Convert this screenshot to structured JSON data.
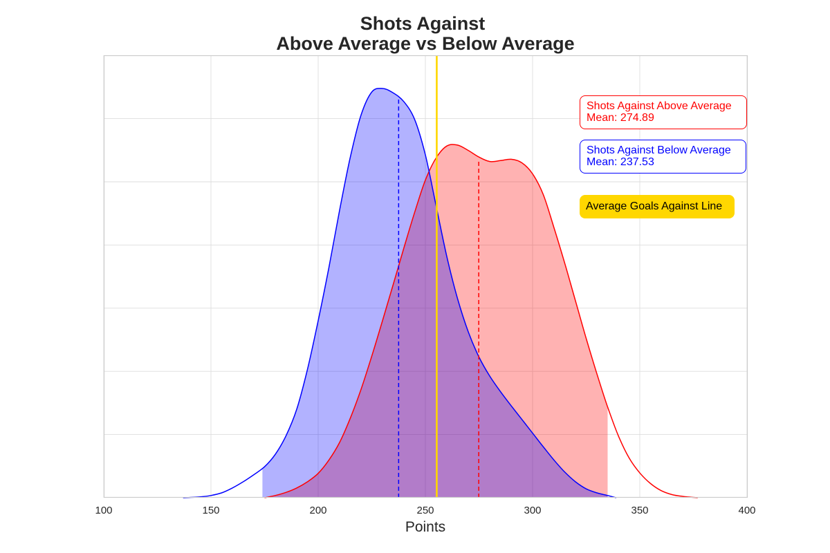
{
  "chart_data": {
    "type": "area",
    "title_lines": [
      "Shots Against",
      "Above Average vs Below Average"
    ],
    "xlabel": "Points",
    "ylabel": "",
    "xlim": [
      100,
      400
    ],
    "xticks": [
      100,
      150,
      200,
      250,
      300,
      350,
      400
    ],
    "ylim": [
      0,
      1.0
    ],
    "grid": true,
    "vertical_line": {
      "x": 255.3,
      "color": "#ffd700",
      "label": "Average Goals Against Line"
    },
    "series": [
      {
        "name": "Shots Against Above Average",
        "color": "#ff0000",
        "fill": "#ffb1b1",
        "mean": 274.89,
        "legend_text": [
          "Shots Against Above Average",
          "Mean: 274.89"
        ],
        "fill_range": [
          175,
          335
        ],
        "points": [
          [
            175,
            0.0
          ],
          [
            180,
            0.005
          ],
          [
            185,
            0.012
          ],
          [
            190,
            0.022
          ],
          [
            195,
            0.036
          ],
          [
            200,
            0.055
          ],
          [
            205,
            0.085
          ],
          [
            210,
            0.125
          ],
          [
            215,
            0.18
          ],
          [
            220,
            0.245
          ],
          [
            225,
            0.32
          ],
          [
            230,
            0.4
          ],
          [
            235,
            0.482
          ],
          [
            240,
            0.565
          ],
          [
            245,
            0.645
          ],
          [
            250,
            0.718
          ],
          [
            255,
            0.768
          ],
          [
            260,
            0.795
          ],
          [
            265,
            0.797
          ],
          [
            270,
            0.785
          ],
          [
            275,
            0.77
          ],
          [
            280,
            0.76
          ],
          [
            285,
            0.762
          ],
          [
            290,
            0.765
          ],
          [
            295,
            0.757
          ],
          [
            300,
            0.732
          ],
          [
            305,
            0.685
          ],
          [
            310,
            0.61
          ],
          [
            315,
            0.53
          ],
          [
            320,
            0.445
          ],
          [
            325,
            0.36
          ],
          [
            330,
            0.28
          ],
          [
            335,
            0.205
          ],
          [
            340,
            0.14
          ],
          [
            345,
            0.09
          ],
          [
            350,
            0.056
          ],
          [
            355,
            0.032
          ],
          [
            360,
            0.016
          ],
          [
            365,
            0.007
          ],
          [
            370,
            0.003
          ],
          [
            377,
            0.0
          ]
        ],
        "mean_density": 0.765
      },
      {
        "name": "Shots Against Below Average",
        "color": "#0000ff",
        "fill": "#b1b1ff",
        "mean": 237.53,
        "legend_text": [
          "Shots Against Below Average",
          "Mean: 237.53"
        ],
        "fill_range": [
          174,
          335
        ],
        "points": [
          [
            137,
            0.0
          ],
          [
            145,
            0.002
          ],
          [
            150,
            0.005
          ],
          [
            155,
            0.011
          ],
          [
            160,
            0.022
          ],
          [
            165,
            0.036
          ],
          [
            170,
            0.052
          ],
          [
            175,
            0.07
          ],
          [
            180,
            0.098
          ],
          [
            185,
            0.14
          ],
          [
            190,
            0.2
          ],
          [
            195,
            0.29
          ],
          [
            200,
            0.4
          ],
          [
            205,
            0.52
          ],
          [
            210,
            0.65
          ],
          [
            215,
            0.77
          ],
          [
            220,
            0.865
          ],
          [
            225,
            0.917
          ],
          [
            230,
            0.925
          ],
          [
            235,
            0.915
          ],
          [
            240,
            0.895
          ],
          [
            245,
            0.855
          ],
          [
            250,
            0.775
          ],
          [
            255,
            0.66
          ],
          [
            260,
            0.545
          ],
          [
            265,
            0.45
          ],
          [
            270,
            0.375
          ],
          [
            275,
            0.318
          ],
          [
            280,
            0.275
          ],
          [
            285,
            0.24
          ],
          [
            290,
            0.208
          ],
          [
            295,
            0.177
          ],
          [
            300,
            0.146
          ],
          [
            305,
            0.115
          ],
          [
            310,
            0.085
          ],
          [
            315,
            0.058
          ],
          [
            320,
            0.036
          ],
          [
            325,
            0.02
          ],
          [
            330,
            0.011
          ],
          [
            335,
            0.005
          ],
          [
            339,
            0.0
          ]
        ],
        "mean_density": 0.905
      }
    ]
  }
}
